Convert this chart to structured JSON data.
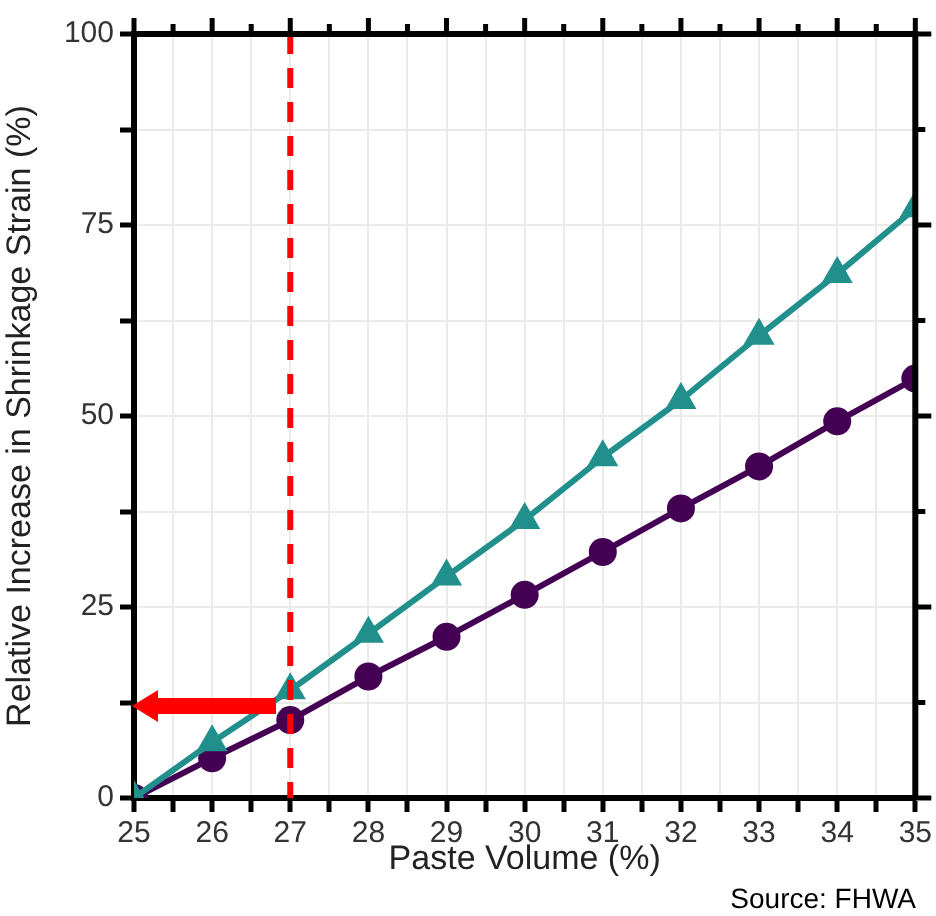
{
  "chart_data": {
    "type": "line",
    "xlabel": "Paste Volume (%)",
    "ylabel": "Relative Increase in Shrinkage Strain (%)",
    "annotations": [
      "Source: FHWA"
    ],
    "x": [
      25,
      26,
      27,
      28,
      29,
      30,
      31,
      32,
      33,
      34,
      35
    ],
    "series": [
      {
        "color": "#21908c",
        "marker": "triangle",
        "values": [
          0,
          7.3,
          14.1,
          21.5,
          29.0,
          36.4,
          44.6,
          52.1,
          60.5,
          68.6,
          77.2
        ]
      },
      {
        "color": "#440154",
        "marker": "circle",
        "values": [
          0,
          5.2,
          10.2,
          15.9,
          21.1,
          26.6,
          32.2,
          37.9,
          43.4,
          49.3,
          54.9
        ]
      }
    ],
    "xlim": [
      25,
      35
    ],
    "xticks": [
      25,
      {
        "value": 25.5,
        "label": null
      },
      26,
      {
        "value": 26.5,
        "label": null
      },
      27,
      {
        "value": 27.5,
        "label": null
      },
      28,
      {
        "value": 28.5,
        "label": null
      },
      29,
      {
        "value": 29.5,
        "label": null
      },
      30,
      {
        "value": 30.5,
        "label": null
      },
      31,
      {
        "value": 31.5,
        "label": null
      },
      32,
      {
        "value": 32.5,
        "label": null
      },
      33,
      {
        "value": 33.5,
        "label": null
      },
      34,
      {
        "value": 34.5,
        "label": null
      },
      35
    ],
    "ylim": [
      0,
      100
    ],
    "yticks": [
      0,
      {
        "value": 12.5,
        "label": null
      },
      25,
      {
        "value": 37.5,
        "label": null
      },
      50,
      {
        "value": 62.5,
        "label": null
      },
      75,
      {
        "value": 87.5,
        "label": null
      },
      100
    ],
    "ref_lines": [
      {
        "axis": "x",
        "value": 27,
        "color": "#ff0000",
        "line_style": "dashed"
      }
    ],
    "grid": true,
    "legend": false,
    "line_style": "solid"
  }
}
